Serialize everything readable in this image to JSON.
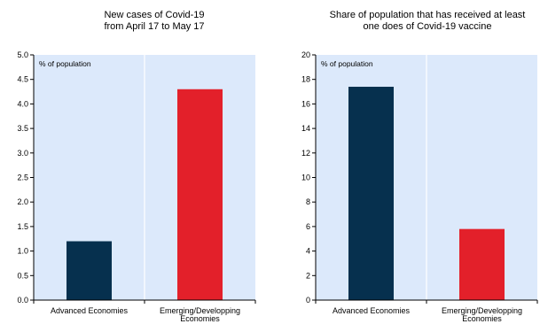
{
  "chart_data": [
    {
      "type": "bar",
      "title": [
        "New cases of Covid-19",
        "from April 17 to May 17"
      ],
      "unit_label": "% of population",
      "categories": [
        [
          "Advanced Economies"
        ],
        [
          "Emerging/Developping",
          "Economies"
        ]
      ],
      "values": [
        1.2,
        4.3
      ],
      "colors": [
        "#06304e",
        "#e3202a"
      ],
      "ylim": [
        0,
        5
      ],
      "yticks": [
        "0.0",
        "0.5",
        "1.0",
        "1.5",
        "2.0",
        "2.5",
        "3.0",
        "3.5",
        "4.0",
        "4.5",
        "5.0"
      ],
      "plot_background": "#dce9fb",
      "grid": "vertical-category-separators"
    },
    {
      "type": "bar",
      "title": [
        "Share of population that has received at least",
        "one does of Covid-19 vaccine"
      ],
      "unit_label": "% of population",
      "categories": [
        [
          "Advanced Economies"
        ],
        [
          "Emerging/Developping",
          "Economies"
        ]
      ],
      "values": [
        17.4,
        5.8
      ],
      "colors": [
        "#06304e",
        "#e3202a"
      ],
      "ylim": [
        0,
        20
      ],
      "yticks": [
        "0",
        "2",
        "4",
        "6",
        "8",
        "10",
        "12",
        "14",
        "16",
        "18",
        "20"
      ],
      "plot_background": "#dce9fb",
      "grid": "vertical-category-separators"
    }
  ]
}
